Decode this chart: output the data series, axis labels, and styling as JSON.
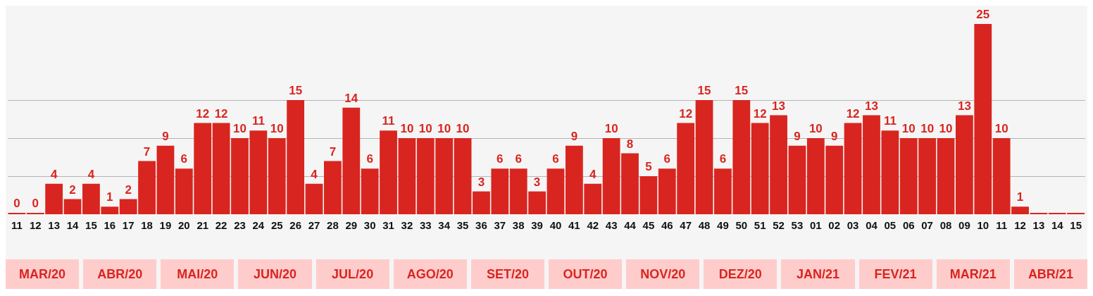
{
  "chart_data": {
    "type": "bar",
    "categories": [
      "11",
      "12",
      "13",
      "14",
      "15",
      "16",
      "17",
      "18",
      "19",
      "20",
      "21",
      "22",
      "23",
      "24",
      "25",
      "26",
      "27",
      "28",
      "29",
      "30",
      "31",
      "32",
      "33",
      "34",
      "35",
      "36",
      "37",
      "38",
      "39",
      "40",
      "41",
      "42",
      "43",
      "44",
      "45",
      "46",
      "47",
      "48",
      "49",
      "50",
      "51",
      "52",
      "53",
      "01",
      "02",
      "03",
      "04",
      "05",
      "06",
      "07",
      "08",
      "09",
      "10",
      "11",
      "12",
      "13",
      "14",
      "15"
    ],
    "values": [
      0,
      0,
      4,
      2,
      4,
      1,
      2,
      7,
      9,
      6,
      12,
      12,
      10,
      11,
      10,
      15,
      4,
      7,
      14,
      6,
      11,
      10,
      10,
      10,
      10,
      3,
      6,
      6,
      3,
      6,
      9,
      4,
      10,
      8,
      5,
      6,
      12,
      15,
      6,
      15,
      12,
      13,
      9,
      10,
      9,
      12,
      13,
      11,
      10,
      10,
      10,
      13,
      25,
      10,
      1,
      0,
      0,
      0
    ],
    "value_labels": [
      "0",
      "0",
      "4",
      "2",
      "4",
      "1",
      "2",
      "7",
      "9",
      "6",
      "12",
      "12",
      "10",
      "11",
      "10",
      "15",
      "4",
      "7",
      "14",
      "6",
      "11",
      "10",
      "10",
      "10",
      "10",
      "3",
      "6",
      "6",
      "3",
      "6",
      "9",
      "4",
      "10",
      "8",
      "5",
      "6",
      "12",
      "15",
      "6",
      "15",
      "12",
      "13",
      "9",
      "10",
      "9",
      "12",
      "13",
      "11",
      "10",
      "10",
      "10",
      "13",
      "25",
      "10",
      "1",
      null,
      null,
      null
    ],
    "color": "#d9251f",
    "ylim": [
      0,
      25
    ],
    "yticks": [
      5,
      10,
      15
    ],
    "grid": "y",
    "tick_labels": "x",
    "legend": false,
    "annotations": [
      "MAR/20",
      "ABR/20",
      "MAI/20",
      "JUN/20",
      "JUL/20",
      "AGO/20",
      "SET/20",
      "OUT/20",
      "NOV/20",
      "DEZ/20",
      "JAN/21",
      "FEV/21",
      "MAR/21",
      "ABR/21"
    ]
  }
}
